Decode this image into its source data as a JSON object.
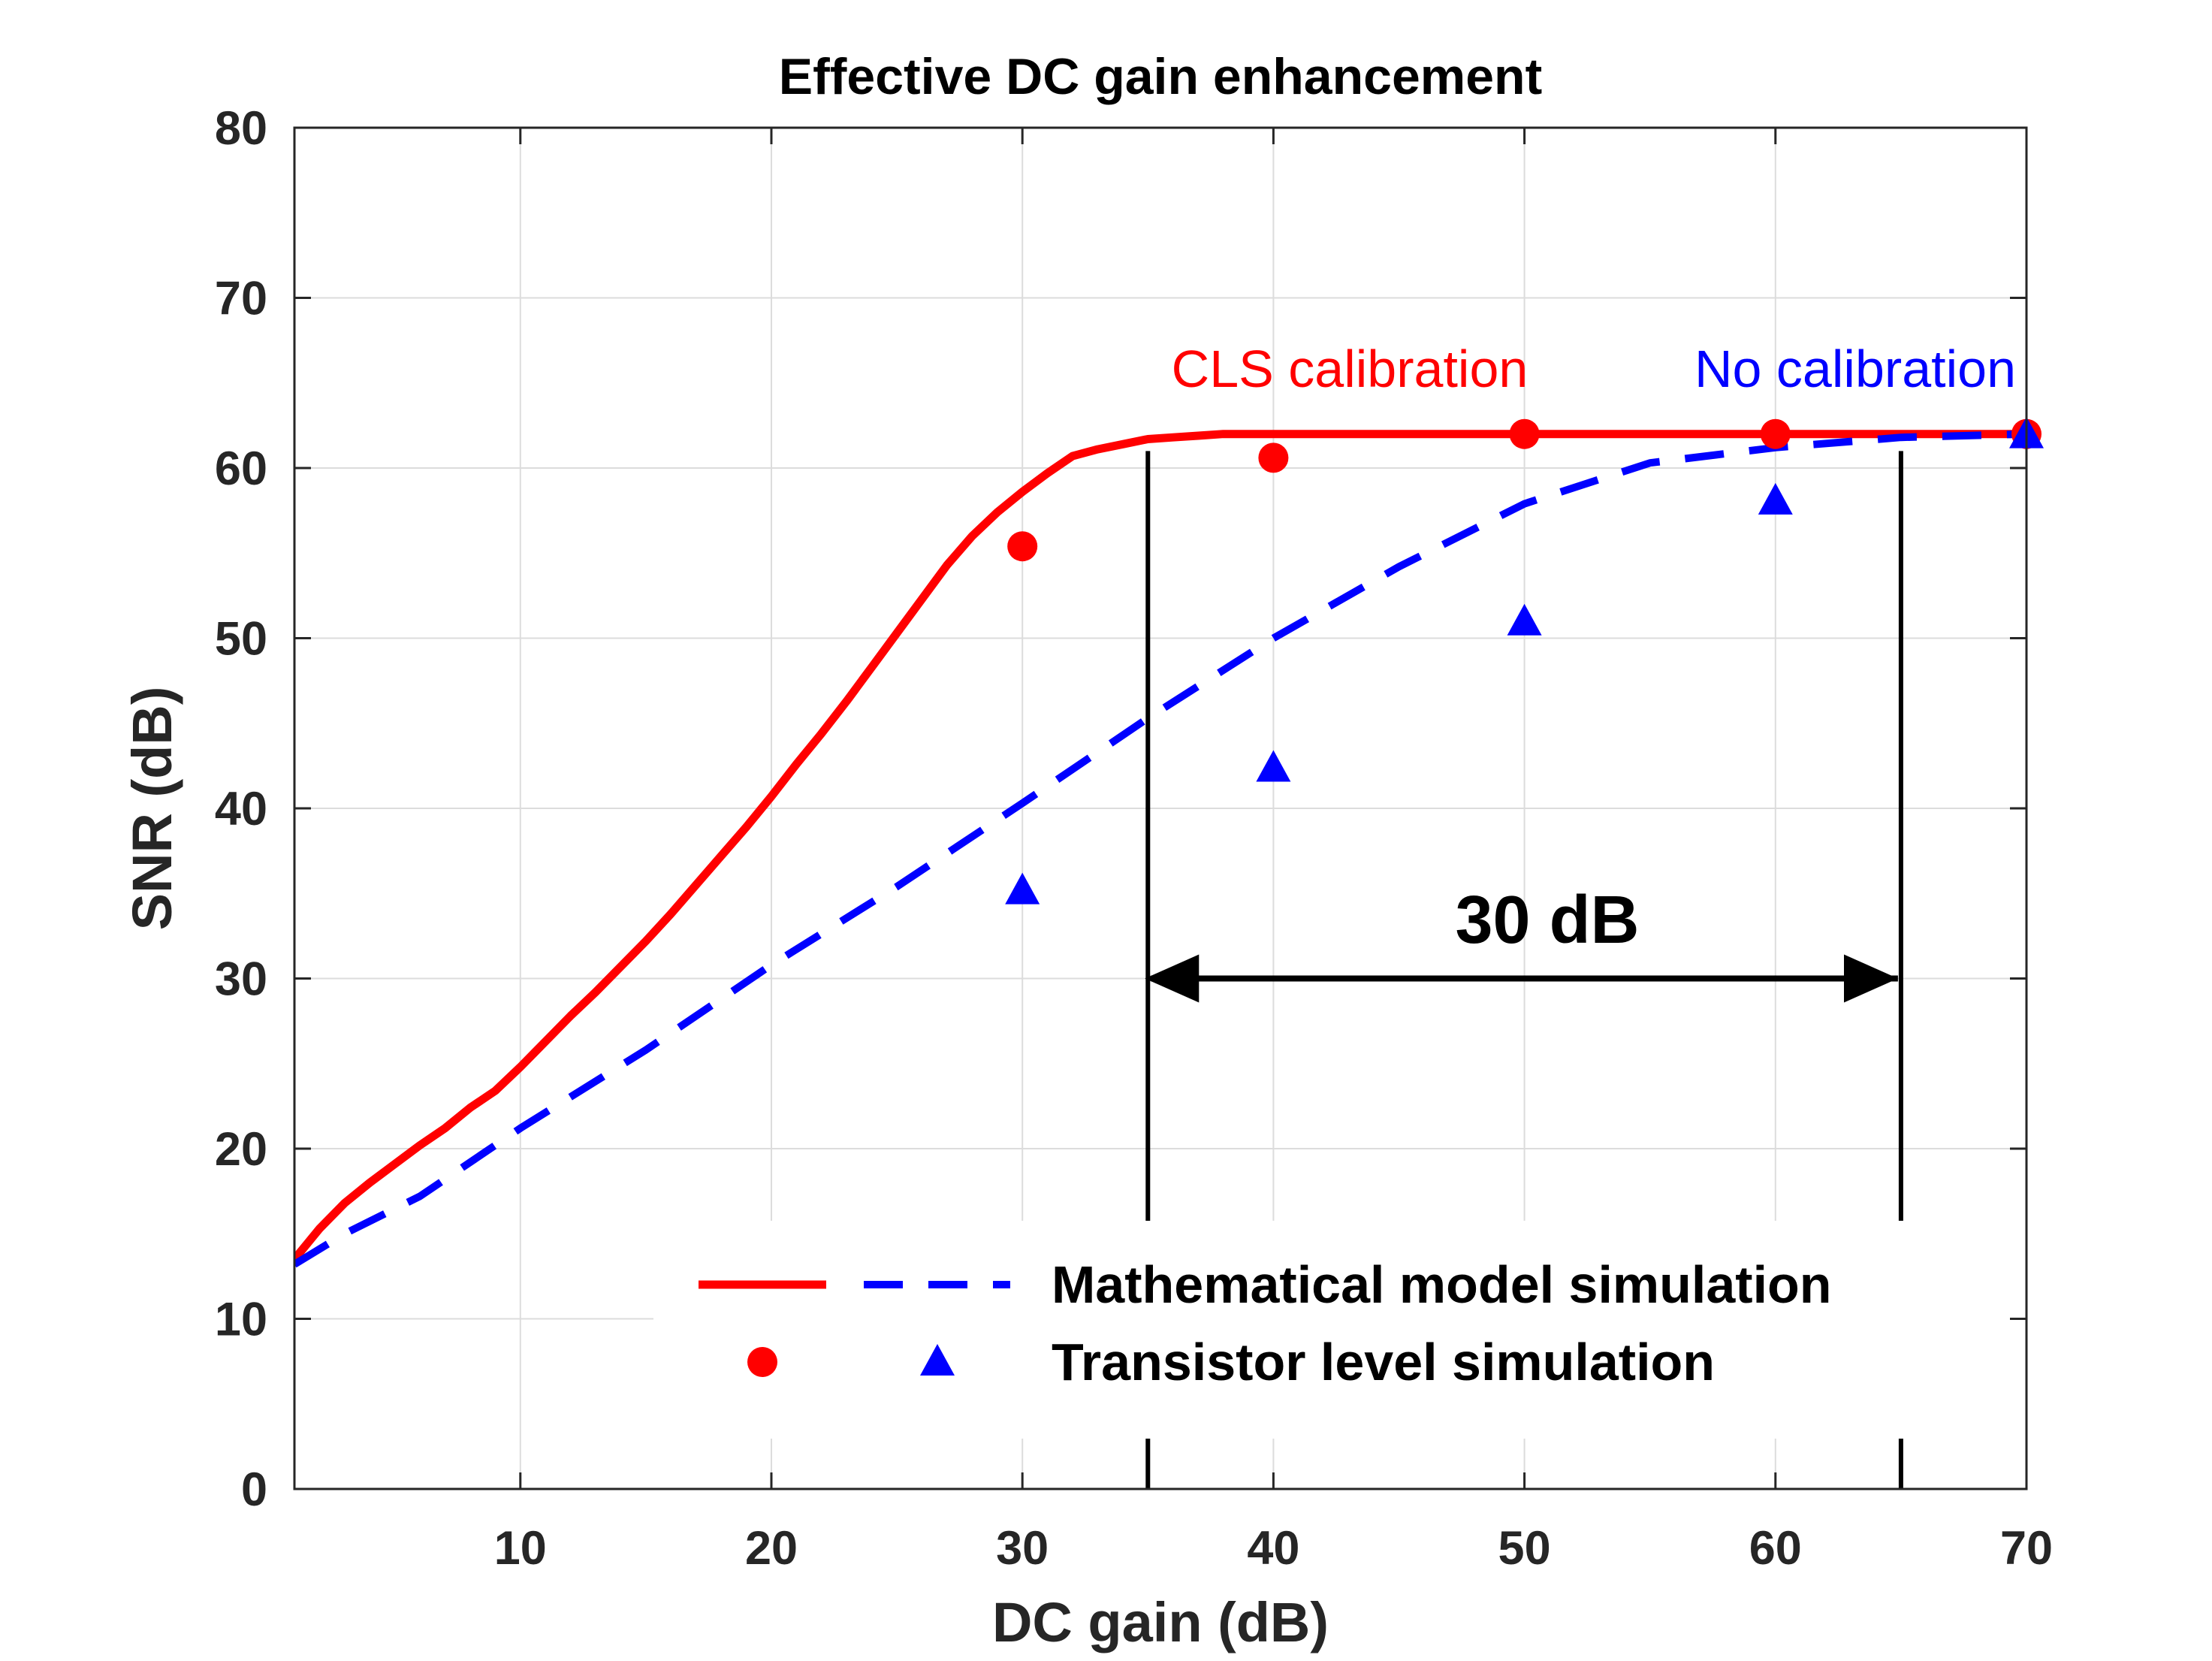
{
  "chart_data": {
    "type": "line",
    "title": "Effective DC gain enhancement",
    "xlabel": "DC gain (dB)",
    "ylabel": "SNR (dB)",
    "xlim": [
      1,
      70
    ],
    "ylim": [
      0,
      80
    ],
    "xticks": [
      10,
      20,
      30,
      40,
      50,
      60,
      70
    ],
    "yticks": [
      0,
      10,
      20,
      30,
      40,
      50,
      60,
      70,
      80
    ],
    "grid": true,
    "series": [
      {
        "name": "Mathematical model simulation",
        "group": "CLS calibration",
        "style": "solid",
        "color": "#ff0000",
        "x": [
          1,
          2,
          3,
          4,
          5,
          6,
          7,
          8,
          9,
          10,
          11,
          12,
          13,
          14,
          15,
          16,
          17,
          18,
          19,
          20,
          21,
          22,
          23,
          24,
          25,
          26,
          27,
          28,
          29,
          30,
          31,
          32,
          33,
          34,
          35,
          36,
          37,
          38,
          39,
          40,
          42,
          45,
          50,
          55,
          60,
          65,
          70
        ],
        "y": [
          13.5,
          15.3,
          16.8,
          18.0,
          19.1,
          20.2,
          21.2,
          22.4,
          23.4,
          24.8,
          26.3,
          27.8,
          29.2,
          30.7,
          32.2,
          33.8,
          35.5,
          37.2,
          38.9,
          40.7,
          42.6,
          44.4,
          46.3,
          48.3,
          50.3,
          52.3,
          54.3,
          56.0,
          57.4,
          58.6,
          59.7,
          60.7,
          61.1,
          61.4,
          61.7,
          61.8,
          61.9,
          62.0,
          62.0,
          62.0,
          62.0,
          62.0,
          62.0,
          62.0,
          62.0,
          62.0,
          62.0
        ]
      },
      {
        "name": "Mathematical model simulation",
        "group": "No calibration",
        "style": "dashed",
        "color": "#0000ff",
        "x": [
          1,
          3,
          6,
          10,
          15,
          20,
          25,
          30,
          35,
          40,
          45,
          50,
          55,
          60,
          65,
          70
        ],
        "y": [
          13.2,
          15.0,
          17.2,
          21.2,
          25.8,
          30.8,
          35.4,
          40.3,
          45.3,
          50.0,
          54.2,
          57.9,
          60.3,
          61.2,
          61.8,
          62.0
        ]
      },
      {
        "name": "Transistor level simulation",
        "group": "CLS calibration",
        "marker": "circle",
        "color": "#ff0000",
        "x": [
          30,
          40,
          50,
          60,
          70
        ],
        "y": [
          55.4,
          60.6,
          62.0,
          62.0,
          62.0
        ]
      },
      {
        "name": "Transistor level simulation",
        "group": "No calibration",
        "marker": "triangle",
        "color": "#0000ff",
        "x": [
          30,
          40,
          50,
          60,
          70
        ],
        "y": [
          35.2,
          42.4,
          51.0,
          58.1,
          62.0
        ]
      }
    ],
    "legend": {
      "placement": "bottom-right",
      "entries": [
        "Mathematical model simulation",
        "Transistor level simulation"
      ]
    },
    "annotations": {
      "cls_label": "CLS calibration",
      "nocal_label": "No calibration",
      "gap_label": "30 dB",
      "gap_from_x": 35,
      "gap_to_x": 65,
      "gap_arrow_y": 30,
      "vline_top_y": 61
    },
    "colors": {
      "cls": "#ff0000",
      "nocal": "#0000ff",
      "axis": "#262626",
      "grid": "#dcdcdc"
    }
  }
}
